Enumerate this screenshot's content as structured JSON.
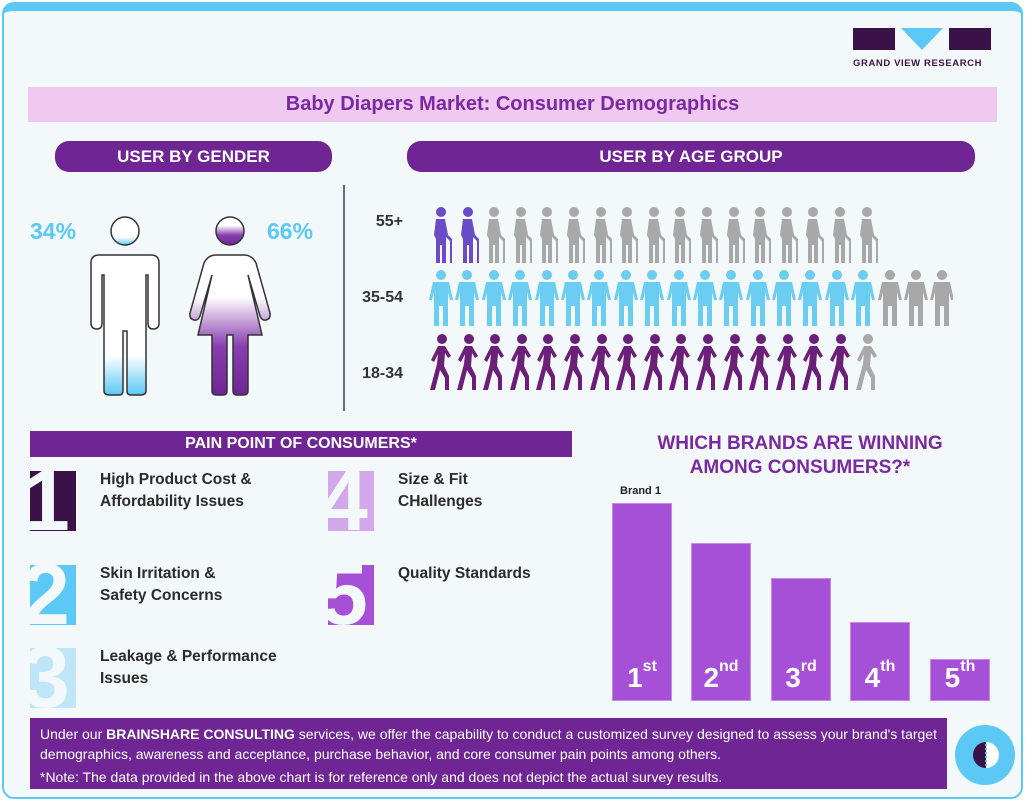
{
  "logo": {
    "text": "GRAND VIEW RESEARCH",
    "colors": {
      "dark": "#3a1248",
      "accent": "#5bc8f5"
    }
  },
  "title": "Baby Diapers Market: Consumer Demographics",
  "gender": {
    "header": "USER BY GENDER",
    "male_pct": "34%",
    "female_pct": "66%",
    "male_share": 0.34,
    "female_share": 0.66
  },
  "age": {
    "header": "USER BY AGE GROUP",
    "rows": [
      {
        "label": "55+",
        "icon": "elderly-person-with-cane-icon",
        "highlighted": 2,
        "total": 17,
        "color": "#6a4cc9"
      },
      {
        "label": "35-54",
        "icon": "adult-man-woman-icon",
        "highlighted": 17,
        "total": 20,
        "color": "#6ccdf2"
      },
      {
        "label": "18-34",
        "icon": "walking-person-icon",
        "highlighted": 16,
        "total": 17,
        "color": "#6b1f78"
      }
    ],
    "inactive_color": "#a8a8a8"
  },
  "pain_points": {
    "header": "PAIN POINT OF CONSUMERS*",
    "items": [
      {
        "num": "1",
        "line1": "High Product Cost &",
        "line2": "Affordability Issues",
        "color": "#3a1248"
      },
      {
        "num": "2",
        "line1": "Skin Irritation &",
        "line2": "Safety Concerns",
        "color": "#5bc8f5"
      },
      {
        "num": "3",
        "line1": "Leakage & Performance",
        "line2": "Issues",
        "color": "#bfe6f7"
      },
      {
        "num": "4",
        "line1": "Size & Fit",
        "line2": "CHallenges",
        "color": "#d3a8ea"
      },
      {
        "num": "5",
        "line1": "Quality Standards",
        "line2": "",
        "color": "#a650d8"
      }
    ]
  },
  "chart_data": {
    "type": "bar",
    "title": "WHICH BRANDS ARE WINNING AMONG CONSUMERS?*",
    "categories": [
      "1st",
      "2nd",
      "3rd",
      "4th",
      "5th"
    ],
    "rank_nums": [
      "1",
      "2",
      "3",
      "4",
      "5"
    ],
    "rank_suffix": [
      "st",
      "nd",
      "rd",
      "th",
      "th"
    ],
    "values": [
      100,
      80,
      62,
      40,
      21
    ],
    "annotation": "Brand 1",
    "color": "#a650d8"
  },
  "footer": {
    "pre": "Under our ",
    "brand": "BRAINSHARE CONSULTING",
    "post": " services, we offer the capability to conduct a customized survey designed to assess your brand's target demographics, awareness and acceptance, purchase behavior, and core consumer pain points among others.",
    "note": "*Note: The data provided in the above chart is for reference only and does not depict the actual survey results."
  }
}
